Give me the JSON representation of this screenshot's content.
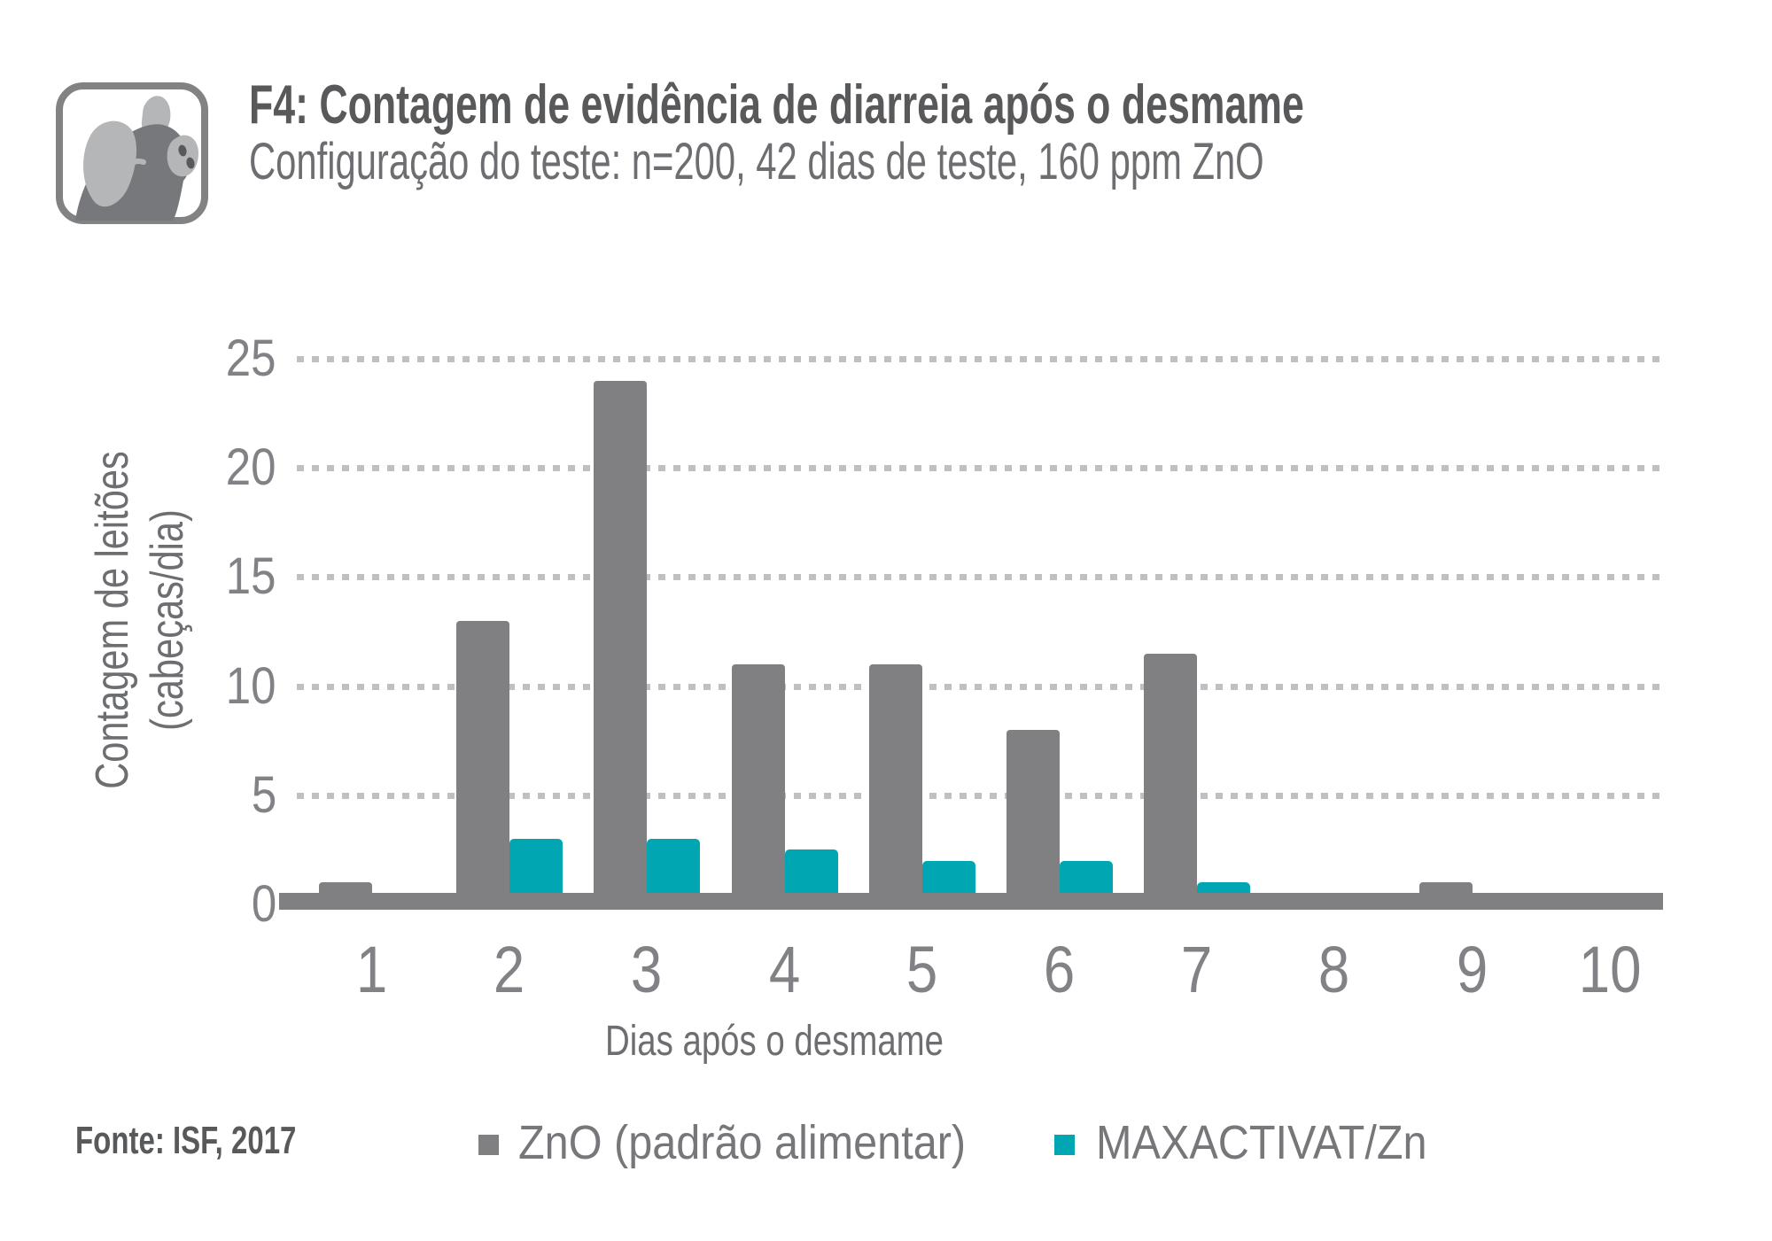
{
  "header": {
    "title": "F4: Contagem de evidência de diarreia após o desmame",
    "subtitle": "Configuração do teste: n=200, 42 dias de teste, 160 ppm ZnO",
    "icon": "pig-icon"
  },
  "chart_data": {
    "type": "bar",
    "title": "F4: Contagem de evidência de diarreia após o desmame",
    "subtitle": "Configuração do teste: n=200, 42 dias de teste, 160 ppm ZnO",
    "categories": [
      "1",
      "2",
      "3",
      "4",
      "5",
      "6",
      "7",
      "8",
      "9",
      "10"
    ],
    "series": [
      {
        "name": "ZnO (padrão alimentar)",
        "color": "#808083",
        "values": [
          1,
          13,
          24,
          11,
          11,
          8,
          11.5,
          0,
          1,
          0
        ]
      },
      {
        "name": "MAXACTIVAT/Zn",
        "color": "#00A7B3",
        "values": [
          0,
          3,
          3,
          2.5,
          2,
          2,
          1,
          0,
          0,
          0
        ]
      }
    ],
    "xlabel": "Dias após o desmame",
    "ylabel_line1": "Contagem de leitões",
    "ylabel_line2": "(cabeças/dia)",
    "yticks": [
      0,
      5,
      10,
      15,
      20,
      25
    ],
    "ylim": [
      0,
      25
    ],
    "grid": "horizontal-dotted",
    "legend_position": "bottom",
    "gridline_color": "#BEC0C2",
    "tick_label_color": "#808285",
    "axis_line_color": "#808083"
  },
  "footer": {
    "source": "Fonte: ISF, 2017"
  }
}
